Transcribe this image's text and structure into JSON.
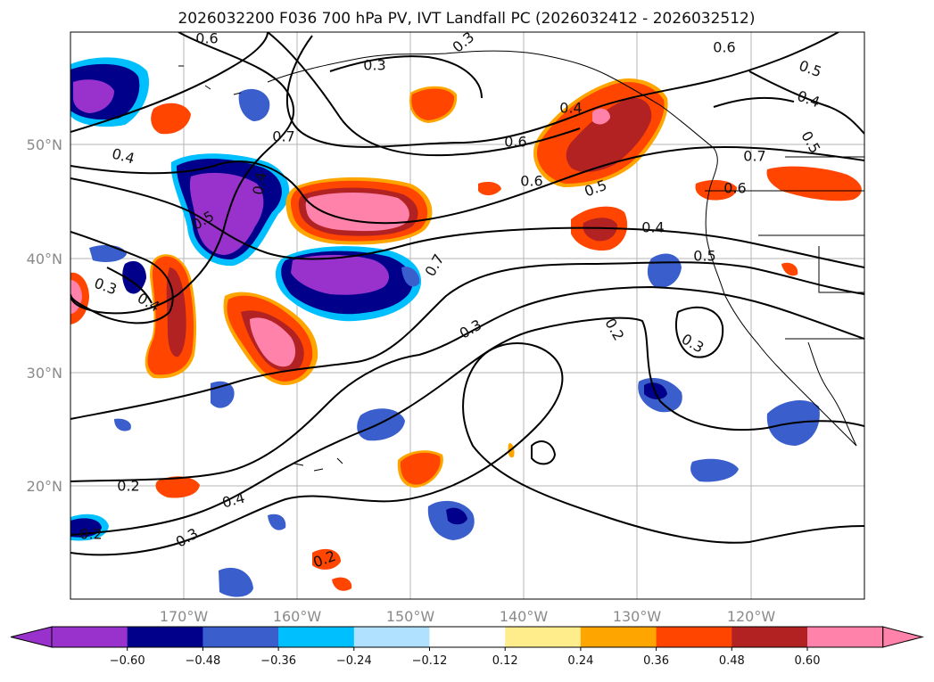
{
  "title": "2026032200 F036 700 hPa PV, IVT Landfall PC (2026032412 - 2026032512)",
  "map": {
    "lon_ticks": [
      "170°W",
      "160°W",
      "150°W",
      "140°W",
      "130°W",
      "120°W"
    ],
    "lat_ticks": [
      "50°N",
      "40°N",
      "30°N",
      "20°N"
    ],
    "contour_labels": [
      "0.6",
      "0.3",
      "0.7",
      "0.4",
      "0.5",
      "0.4",
      "0.6",
      "0.3",
      "0.4",
      "0.6",
      "0.5",
      "0.4",
      "0.6",
      "0.5",
      "0.7",
      "0.6",
      "0.5",
      "0.4",
      "0.7",
      "0.5",
      "0.3",
      "0.4",
      "0.2",
      "0.3",
      "0.3",
      "0.2",
      "0.4",
      "0.2",
      "0.3",
      "0.2"
    ],
    "colors": {
      "c_m060": "#9932cc",
      "c_m048": "#00008b",
      "c_m036": "#3a5fcd",
      "c_m024": "#00bfff",
      "c_m012": "#b0e2ff",
      "c_p012": "#ffec8b",
      "c_p024": "#ffa500",
      "c_p036": "#ff4500",
      "c_p048": "#b22222",
      "c_p060": "#ff82ab"
    }
  },
  "colorbar": {
    "ticks": [
      "−0.60",
      "−0.48",
      "−0.36",
      "−0.24",
      "−0.12",
      "0.12",
      "0.24",
      "0.36",
      "0.48",
      "0.60"
    ],
    "colors": [
      "#9932cc",
      "#00008b",
      "#3a5fcd",
      "#00bfff",
      "#b0e2ff",
      "#ffffff",
      "#ffec8b",
      "#ffa500",
      "#ff4500",
      "#b22222",
      "#ff82ab",
      "#ff82ab"
    ]
  }
}
